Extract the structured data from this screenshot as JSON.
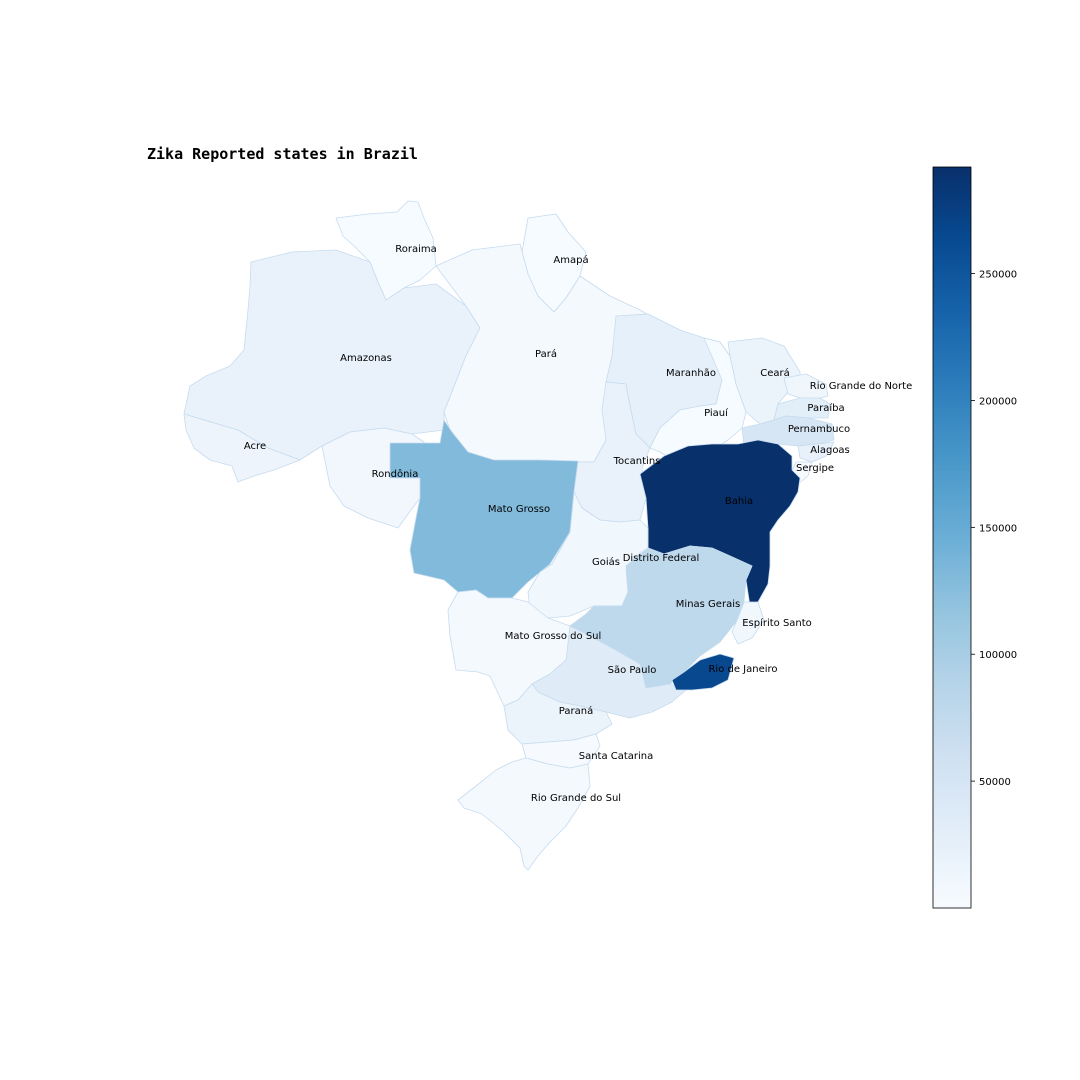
{
  "title": "Zika Reported states in Brazil",
  "colorbar": {
    "colormap": "Blues",
    "min": 0,
    "max": 292000,
    "ticks": [
      {
        "label": "50000",
        "value": 50000
      },
      {
        "label": "100000",
        "value": 100000
      },
      {
        "label": "150000",
        "value": 150000
      },
      {
        "label": "200000",
        "value": 200000
      },
      {
        "label": "250000",
        "value": 250000
      }
    ]
  },
  "states": [
    {
      "name": "Roraima",
      "value": 1000
    },
    {
      "name": "Amapá",
      "value": 1000
    },
    {
      "name": "Amazonas",
      "value": 20000
    },
    {
      "name": "Pará",
      "value": 4000
    },
    {
      "name": "Acre",
      "value": 15000
    },
    {
      "name": "Rondônia",
      "value": 8000
    },
    {
      "name": "Mato Grosso",
      "value": 130000
    },
    {
      "name": "Maranhão",
      "value": 25000
    },
    {
      "name": "Piauí",
      "value": 1000
    },
    {
      "name": "Ceará",
      "value": 18000
    },
    {
      "name": "Rio Grande do Norte",
      "value": 12000
    },
    {
      "name": "Paraíba",
      "value": 30000
    },
    {
      "name": "Pernambuco",
      "value": 48000
    },
    {
      "name": "Alagoas",
      "value": 22000
    },
    {
      "name": "Sergipe",
      "value": 3000
    },
    {
      "name": "Tocantins",
      "value": 20000
    },
    {
      "name": "Bahia",
      "value": 292000
    },
    {
      "name": "Goiás",
      "value": 10000
    },
    {
      "name": "Distrito Federal",
      "value": 5000
    },
    {
      "name": "Minas Gerais",
      "value": 80000
    },
    {
      "name": "Espírito Santo",
      "value": 10000
    },
    {
      "name": "Mato Grosso do Sul",
      "value": 5000
    },
    {
      "name": "São Paulo",
      "value": 35000
    },
    {
      "name": "Rio de Janeiro",
      "value": 265000
    },
    {
      "name": "Paraná",
      "value": 18000
    },
    {
      "name": "Santa Catarina",
      "value": 2000
    },
    {
      "name": "Rio Grande do Sul",
      "value": 4000
    }
  ]
}
